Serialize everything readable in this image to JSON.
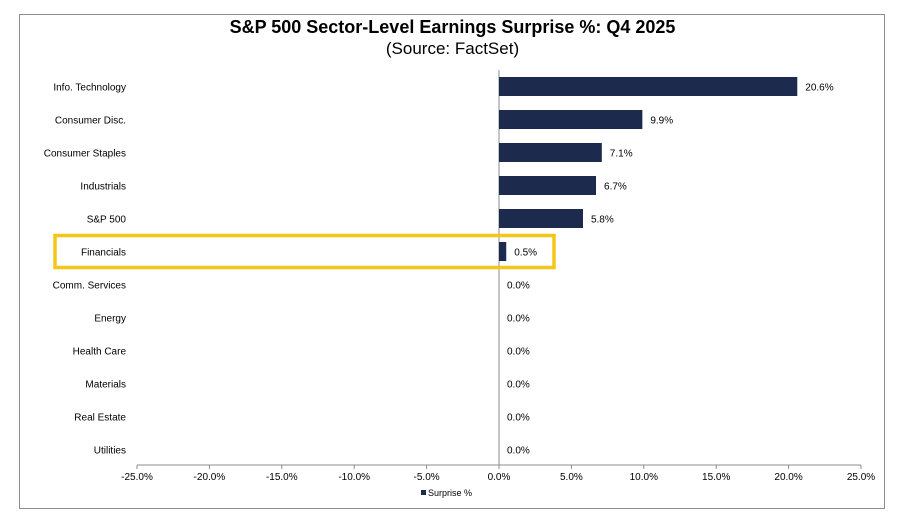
{
  "chart_data": {
    "type": "bar",
    "orientation": "horizontal",
    "title": "S&P 500 Sector-Level Earnings Surprise %: Q4 2025",
    "subtitle": "(Source: FactSet)",
    "categories": [
      "Info. Technology",
      "Consumer Disc.",
      "Consumer Staples",
      "Industrials",
      "S&P 500",
      "Financials",
      "Comm. Services",
      "Energy",
      "Health Care",
      "Materials",
      "Real Estate",
      "Utilities"
    ],
    "series": [
      {
        "name": "Surprise %",
        "values": [
          20.6,
          9.9,
          7.1,
          6.7,
          5.8,
          0.5,
          0.0,
          0.0,
          0.0,
          0.0,
          0.0,
          0.0
        ],
        "labels": [
          "20.6%",
          "9.9%",
          "7.1%",
          "6.7%",
          "5.8%",
          "0.5%",
          "0.0%",
          "0.0%",
          "0.0%",
          "0.0%",
          "0.0%",
          "0.0%"
        ]
      }
    ],
    "xlim": [
      -25,
      25
    ],
    "xticks": [
      -25,
      -20,
      -15,
      -10,
      -5,
      0,
      5,
      10,
      15,
      20,
      25
    ],
    "xtick_labels": [
      "-25.0%",
      "-20.0%",
      "-15.0%",
      "-10.0%",
      "-5.0%",
      "0.0%",
      "5.0%",
      "10.0%",
      "15.0%",
      "20.0%",
      "25.0%"
    ],
    "legend": {
      "label": "Surprise %",
      "position": "bottom-center"
    },
    "highlight": {
      "category": "Financials",
      "style": "yellow-outline"
    },
    "grid": false,
    "colors": {
      "bar": "#1c2a4d",
      "highlight": "#f5c518",
      "axis": "#8c8c8c"
    }
  }
}
